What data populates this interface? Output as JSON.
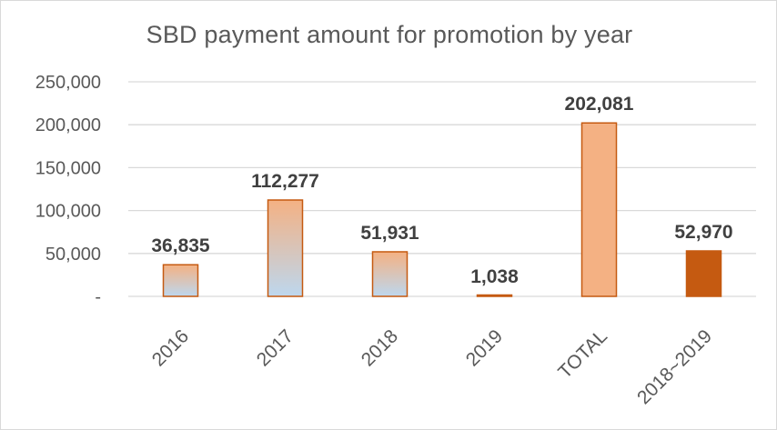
{
  "chart_data": {
    "type": "bar",
    "title": "SBD payment amount for promotion by year",
    "xlabel": "",
    "ylabel": "",
    "categories": [
      "2016",
      "2017",
      "2018",
      "2019",
      "TOTAL",
      "2018~2019"
    ],
    "values": [
      36835,
      112277,
      51931,
      1038,
      202081,
      52970
    ],
    "data_labels": [
      "36,835",
      "112,277",
      "51,931",
      "1,038",
      "202,081",
      "52,970"
    ],
    "ylim": [
      0,
      250000
    ],
    "yticks": [
      0,
      50000,
      100000,
      150000,
      200000,
      250000
    ],
    "ytick_labels": [
      "-",
      "50,000",
      "100,000",
      "150,000",
      "200,000",
      "250,000"
    ],
    "grid": true,
    "legend": "none",
    "colors": {
      "gradient_top": "#f4b183",
      "gradient_bottom": "#bdd7ee",
      "bar_outline": "#c55a11",
      "total_fill": "#f4b183",
      "combined_fill": "#c55a11",
      "grid": "#d9d9d9"
    }
  }
}
